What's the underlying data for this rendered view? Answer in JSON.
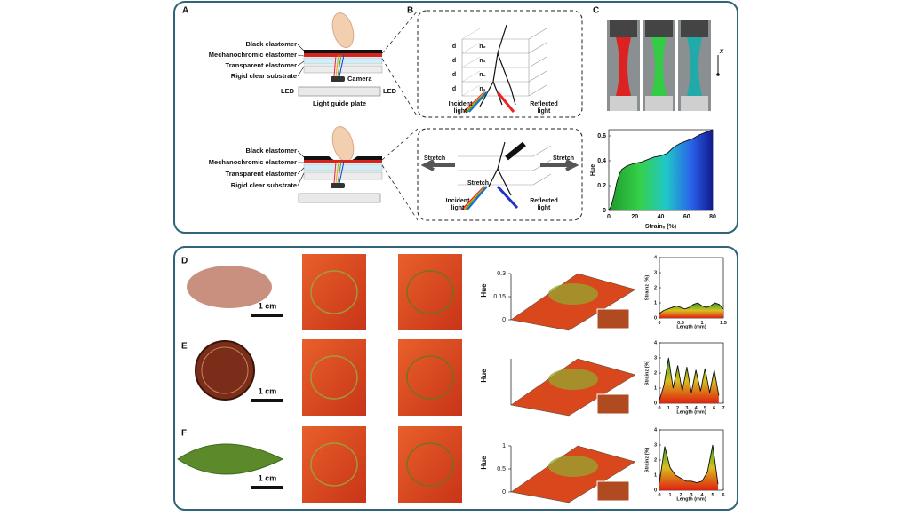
{
  "top": {
    "A": {
      "letter": "A",
      "labels_upper": [
        "Black elastomer",
        "Mechanochromic elastomer",
        "Transparent elastomer",
        "Rigid clear substrate"
      ],
      "camera": "Camera",
      "led_left": "LED",
      "led_right": "LED",
      "plate": "Light guide plate",
      "labels_lower": [
        "Black elastomer",
        "Mechanochromic elastomer",
        "Transparent elastomer",
        "Rigid clear substrate"
      ]
    },
    "B": {
      "letter": "B",
      "d_labels": [
        "d",
        "d",
        "d",
        "d"
      ],
      "n_labels": [
        "n₂",
        "n₁",
        "n₂",
        "n₁"
      ],
      "incident_upper": [
        "Incident",
        "light"
      ],
      "reflected_upper": [
        "Reflected",
        "light"
      ],
      "stretch_left": "Stretch",
      "stretch_right": "Stretch",
      "stretch_center": "Stretch",
      "incident_lower": [
        "Incident",
        "light"
      ],
      "reflected_lower": [
        "Reflected",
        "light"
      ]
    },
    "C": {
      "letter": "C",
      "axis_symbol": "x",
      "chart": {
        "type": "area",
        "xlabel": "Strainₓ (%)",
        "ylabel": "Hue",
        "x": [
          0,
          2,
          4,
          6,
          8,
          10,
          14,
          20,
          25,
          30,
          35,
          40,
          45,
          50,
          55,
          60,
          65,
          70,
          75,
          80
        ],
        "values": [
          0,
          0.04,
          0.12,
          0.22,
          0.29,
          0.33,
          0.36,
          0.38,
          0.39,
          0.41,
          0.43,
          0.44,
          0.46,
          0.51,
          0.54,
          0.56,
          0.58,
          0.61,
          0.63,
          0.65
        ],
        "xlim": [
          0,
          80
        ],
        "ylim": [
          0,
          0.65
        ],
        "xticks": [
          0,
          20,
          40,
          60,
          80
        ],
        "yticks": [
          0,
          0.2,
          0.4,
          0.6
        ]
      }
    }
  },
  "bottom": {
    "rows": [
      {
        "letter": "D",
        "scale_bar": "1 cm",
        "hue_label": "Hue",
        "hue_ticks": [
          0,
          0.15,
          0.3
        ],
        "strain_chart": {
          "type": "area",
          "xlabel": "Length (mm)",
          "ylabel": "Strainz (%)",
          "x": [
            0,
            0.1,
            0.2,
            0.3,
            0.4,
            0.5,
            0.6,
            0.7,
            0.8,
            0.9,
            1,
            1.1,
            1.2,
            1.3,
            1.4,
            1.5
          ],
          "values": [
            0.3,
            0.5,
            0.6,
            0.7,
            0.8,
            0.7,
            0.6,
            0.7,
            0.9,
            1.0,
            0.8,
            0.7,
            0.8,
            1.0,
            0.9,
            0.6
          ],
          "xlim": [
            0,
            1.5
          ],
          "ylim": [
            0,
            4
          ],
          "xticks": [
            0,
            0.5,
            1,
            1.5
          ],
          "yticks": [
            0,
            1,
            2,
            3,
            4
          ]
        }
      },
      {
        "letter": "E",
        "scale_bar": "1 cm",
        "hue_label": "Hue",
        "strain_chart": {
          "type": "area",
          "xlabel": "Length (mm)",
          "ylabel": "Strainz (%)",
          "x": [
            0,
            0.5,
            1,
            1.5,
            2,
            2.5,
            3,
            3.5,
            4,
            4.5,
            5,
            5.5,
            6,
            6.5
          ],
          "values": [
            0.2,
            1.2,
            3.0,
            1.0,
            2.5,
            0.8,
            2.4,
            0.7,
            2.2,
            0.8,
            2.3,
            0.7,
            2.2,
            0.5
          ],
          "xlim": [
            0,
            7
          ],
          "ylim": [
            0,
            4
          ],
          "xticks": [
            0,
            1,
            2,
            3,
            4,
            5,
            6,
            7
          ],
          "yticks": [
            0,
            1,
            2,
            3,
            4
          ]
        }
      },
      {
        "letter": "F",
        "scale_bar": "1 cm",
        "hue_label": "Hue",
        "hue_ticks": [
          0,
          0.5,
          1
        ],
        "strain_chart": {
          "type": "area",
          "xlabel": "Length (mm)",
          "ylabel": "Strainz (%)",
          "x": [
            0,
            0.5,
            1,
            1.5,
            2,
            2.5,
            3,
            3.5,
            4,
            4.5,
            5,
            5.5
          ],
          "values": [
            0.5,
            2.9,
            1.5,
            1.0,
            0.8,
            0.6,
            0.6,
            0.5,
            0.6,
            1.2,
            3.0,
            0.4
          ],
          "xlim": [
            0,
            6
          ],
          "ylim": [
            0,
            4
          ],
          "xticks": [
            0,
            1,
            2,
            3,
            4,
            5,
            6
          ],
          "yticks": [
            0,
            1,
            2,
            3,
            4
          ]
        }
      }
    ]
  }
}
